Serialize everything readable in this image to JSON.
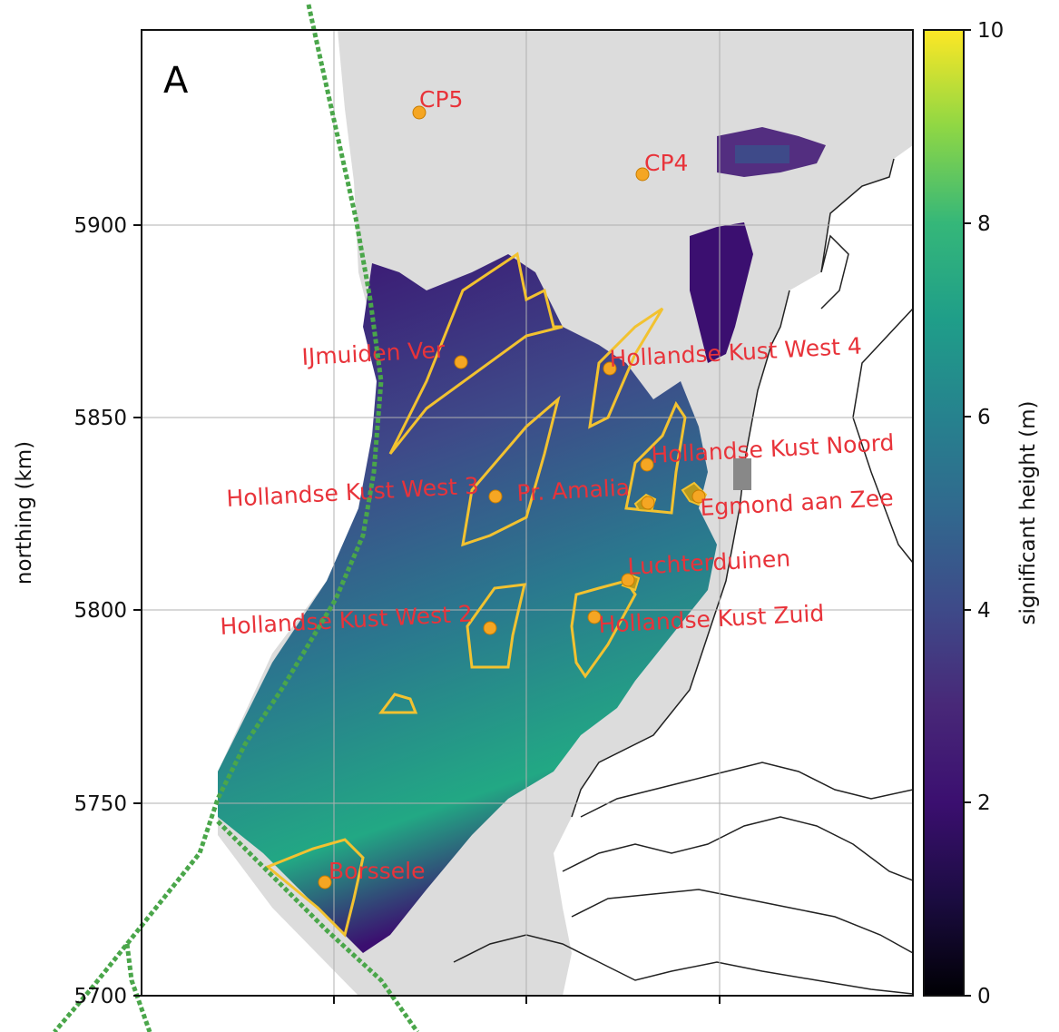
{
  "panel_letter": "A",
  "y_axis": {
    "label": "northing (km)",
    "ticks": [
      "5700",
      "5750",
      "5800",
      "5850",
      "5900"
    ]
  },
  "colorbar": {
    "label": "significant height (m)",
    "range": [
      0,
      10
    ],
    "ticks": [
      "0",
      "2",
      "4",
      "6",
      "8",
      "10"
    ],
    "colormap": "viridis",
    "colors": [
      "#000004",
      "#2d0a5c",
      "#3b528b",
      "#21918c",
      "#5ec962",
      "#fde725"
    ]
  },
  "colors": {
    "land": "#ffffff",
    "sea_no_data": "#dcdcdc",
    "coastline": "#222222",
    "grid": "#b0b0b0",
    "boundary": "#4aa64a",
    "wind_farm_outline": "#f2c230",
    "site_marker": "#f5a623",
    "site_label": "#e8333a"
  },
  "sites": [
    {
      "name": "CP5",
      "icon": "site-marker-icon"
    },
    {
      "name": "CP4",
      "icon": "site-marker-icon"
    },
    {
      "name": "IJmuiden Ver",
      "icon": "site-marker-icon"
    },
    {
      "name": "Hollandse Kust West 4",
      "icon": "site-marker-icon"
    },
    {
      "name": "Hollandse Kust Noord",
      "icon": "site-marker-icon"
    },
    {
      "name": "Hollandse Kust West 3",
      "icon": "site-marker-icon"
    },
    {
      "name": "Pr. Amalia",
      "icon": "site-marker-icon"
    },
    {
      "name": "Egmond aan Zee",
      "icon": "site-marker-icon"
    },
    {
      "name": "Luchterduinen",
      "icon": "site-marker-icon"
    },
    {
      "name": "Hollandse Kust West 2",
      "icon": "site-marker-icon"
    },
    {
      "name": "Hollandse Kust Zuid",
      "icon": "site-marker-icon"
    },
    {
      "name": "Borssele",
      "icon": "site-marker-icon"
    }
  ]
}
